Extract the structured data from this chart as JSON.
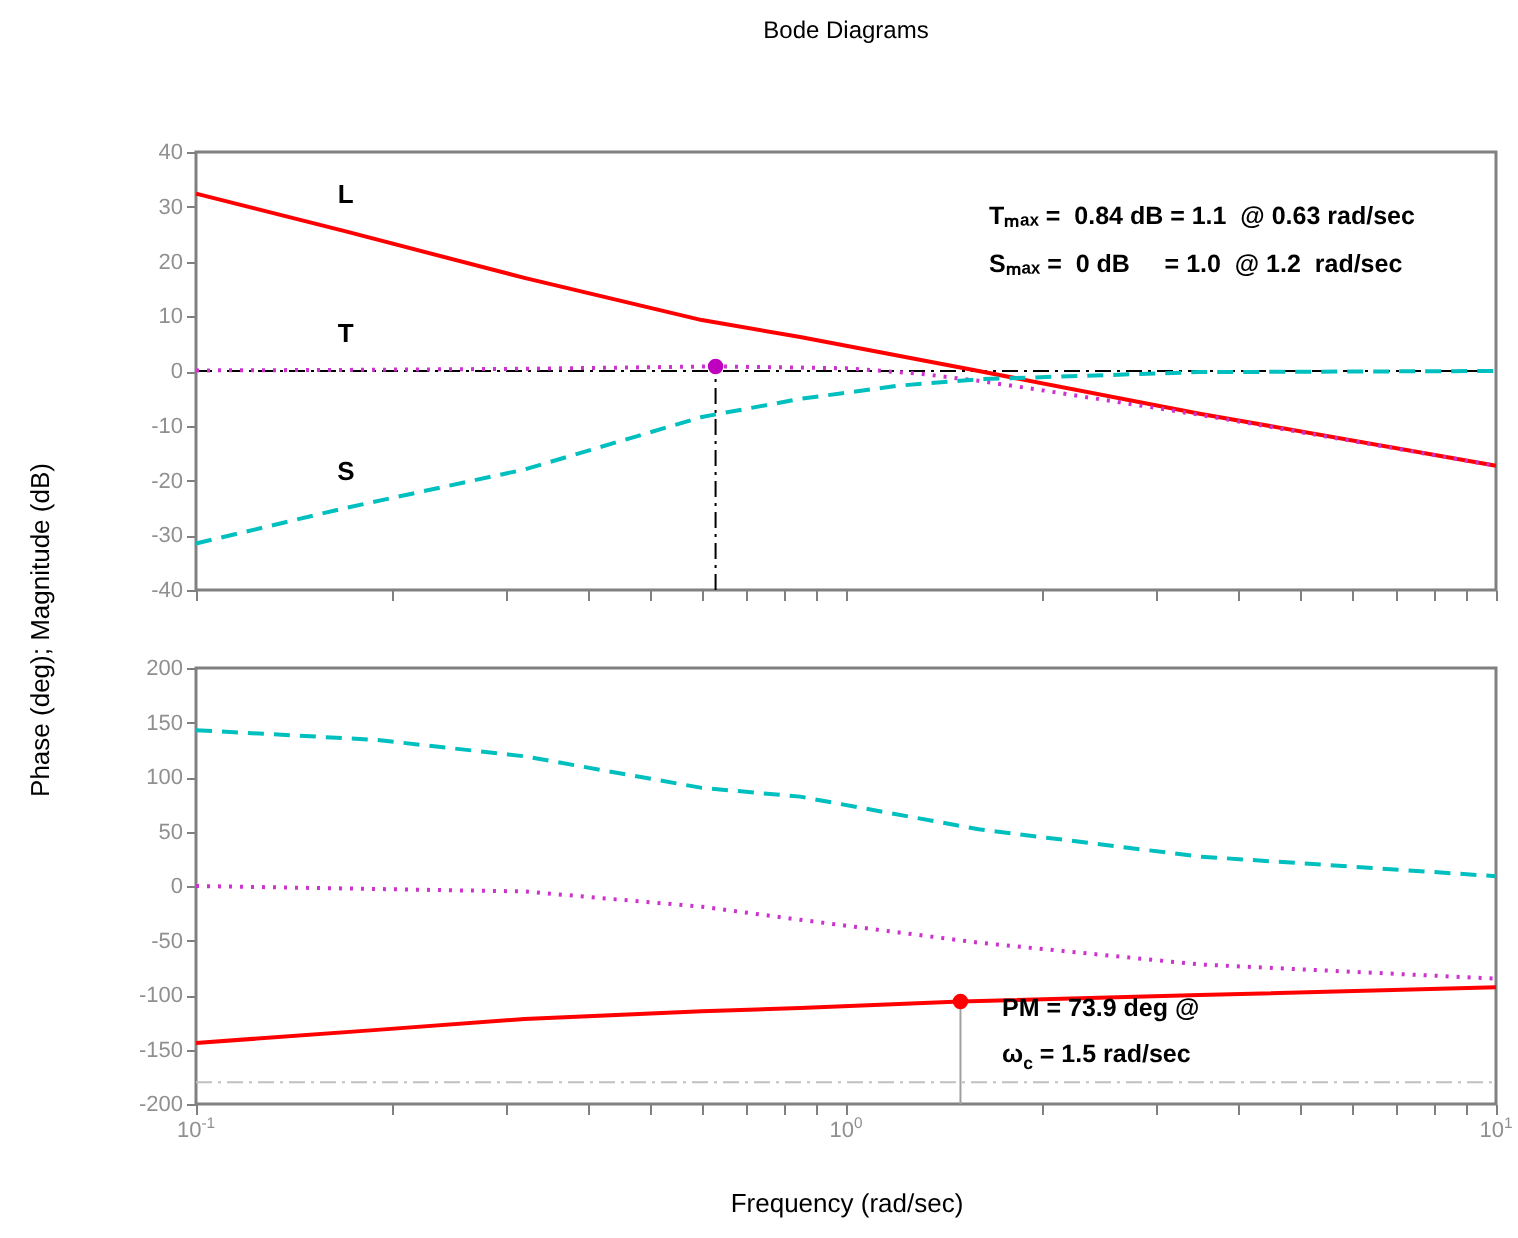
{
  "chart_data": [
    {
      "type": "line",
      "title": "Bode Diagrams",
      "ylabel": "Phase (deg); Magnitude (dB)",
      "xlim": [
        0.1,
        10
      ],
      "ylim": [
        -40,
        40
      ],
      "log": "x",
      "tick_labels": "y",
      "grid": false,
      "xticks": [
        {
          "value": 0.1,
          "label": null
        },
        {
          "value": 0.2,
          "label": null
        },
        {
          "value": 0.3,
          "label": null
        },
        {
          "value": 0.4,
          "label": null
        },
        {
          "value": 0.5,
          "label": null
        },
        {
          "value": 0.6,
          "label": null
        },
        {
          "value": 0.7,
          "label": null
        },
        {
          "value": 0.8,
          "label": null
        },
        {
          "value": 0.9,
          "label": null
        },
        {
          "value": 1,
          "label": null
        },
        {
          "value": 2,
          "label": null
        },
        {
          "value": 3,
          "label": null
        },
        {
          "value": 4,
          "label": null
        },
        {
          "value": 5,
          "label": null
        },
        {
          "value": 6,
          "label": null
        },
        {
          "value": 7,
          "label": null
        },
        {
          "value": 8,
          "label": null
        },
        {
          "value": 9,
          "label": null
        },
        {
          "value": 10,
          "label": null
        }
      ],
      "yticks": [
        -40,
        -30,
        -20,
        -10,
        0,
        10,
        20,
        30,
        40
      ],
      "series": [
        {
          "name": "L",
          "color": "#ff0000",
          "line_style": "solid",
          "x": [
            0.1,
            0.17,
            0.32,
            0.6,
            0.85,
            1.6,
            3.5,
            10
          ],
          "values": [
            32.4,
            25.5,
            17,
            9.3,
            6.2,
            0,
            -7.8,
            -17.3
          ]
        },
        {
          "name": "T",
          "color": "#cc33cc",
          "line_style": "dotted",
          "x": [
            0.1,
            0.17,
            0.32,
            0.63,
            1,
            1.3,
            1.6,
            2,
            3.5,
            10
          ],
          "values": [
            0.1,
            0.2,
            0.4,
            0.84,
            0.5,
            -0.5,
            -1.8,
            -3.5,
            -8,
            -17.3
          ]
        },
        {
          "name": "S",
          "color": "#00bfbf",
          "line_style": "dashed",
          "x": [
            0.1,
            0.17,
            0.32,
            0.6,
            0.85,
            1.2,
            1.6,
            3.5,
            10
          ],
          "values": [
            -31.5,
            -25,
            -18,
            -8.4,
            -5.1,
            -2.7,
            -1.5,
            -0.2,
            0
          ]
        },
        {
          "type": "scatter",
          "marker": "circle",
          "color": "#bf00bf",
          "x": [
            0.63
          ],
          "values": [
            0.84
          ]
        }
      ],
      "ref_lines": [
        {
          "axis": "y",
          "value": 0,
          "color": "#000000",
          "line_style": "dashdot"
        },
        {
          "axis": "x",
          "value": 0.63,
          "color": "#000000",
          "line_style": "dashdot"
        }
      ],
      "annotations": [
        "Tₘₐₓ =  0.84 dB = 1.1  @ 0.63 rad/sec",
        "Sₘₐₓ =  0 dB     = 1.0  @ 1.2  rad/sec"
      ]
    },
    {
      "type": "line",
      "xlabel": "Frequency (rad/sec)",
      "xlim": [
        0.1,
        10
      ],
      "ylim": [
        -200,
        200
      ],
      "log": "x",
      "grid": false,
      "xticks": [
        {
          "value": 0.1,
          "label": "10$^{-1}$"
        },
        {
          "value": 0.2,
          "label": null
        },
        {
          "value": 0.3,
          "label": null
        },
        {
          "value": 0.4,
          "label": null
        },
        {
          "value": 0.5,
          "label": null
        },
        {
          "value": 0.6,
          "label": null
        },
        {
          "value": 0.7,
          "label": null
        },
        {
          "value": 0.8,
          "label": null
        },
        {
          "value": 0.9,
          "label": null
        },
        {
          "value": 1,
          "label": "10$^{0}$"
        },
        {
          "value": 2,
          "label": null
        },
        {
          "value": 3,
          "label": null
        },
        {
          "value": 4,
          "label": null
        },
        {
          "value": 5,
          "label": null
        },
        {
          "value": 6,
          "label": null
        },
        {
          "value": 7,
          "label": null
        },
        {
          "value": 8,
          "label": null
        },
        {
          "value": 9,
          "label": null
        },
        {
          "value": 10,
          "label": "10$^{1}$"
        }
      ],
      "yticks": [
        -200,
        -150,
        -100,
        -50,
        0,
        50,
        100,
        150,
        200
      ],
      "series": [
        {
          "color": "#00bfbf",
          "line_style": "dashed",
          "x": [
            0.1,
            0.19,
            0.32,
            0.6,
            0.85,
            1.6,
            3.5,
            10
          ],
          "values": [
            143,
            134,
            119,
            90,
            82,
            52,
            27,
            9
          ]
        },
        {
          "color": "#cc33cc",
          "line_style": "dotted",
          "x": [
            0.1,
            0.32,
            0.6,
            0.85,
            1.6,
            3.5,
            10
          ],
          "values": [
            0,
            -5,
            -19,
            -31,
            -52,
            -72,
            -85
          ]
        },
        {
          "color": "#ff0000",
          "line_style": "solid",
          "x": [
            0.1,
            0.19,
            0.32,
            0.6,
            0.85,
            1.5,
            3.5,
            10
          ],
          "values": [
            -144,
            -132,
            -122,
            -115,
            -112,
            -106,
            -100,
            -93
          ]
        },
        {
          "type": "scatter",
          "marker": "circle",
          "color": "#ff0000",
          "x": [
            1.5
          ],
          "values": [
            -106
          ]
        }
      ],
      "ref_lines": [
        {
          "axis": "y",
          "value": -180,
          "color": "#c0c0c0",
          "line_style": "dashdot"
        },
        {
          "axis": "x",
          "value": 1.5,
          "color": "#a0a0a0",
          "line_style": "solid"
        }
      ],
      "annotations": [
        "PM = 73.9 deg @",
        "ω$_{c}$ = 1.5 rad/sec"
      ]
    }
  ]
}
